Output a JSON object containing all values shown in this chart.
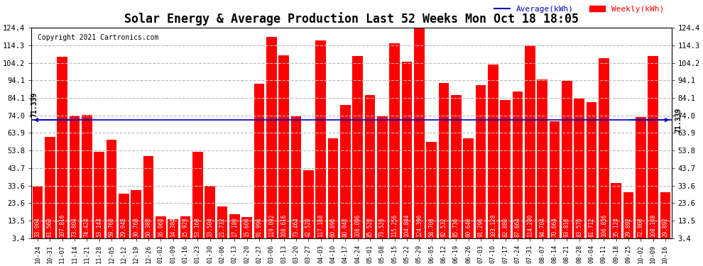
{
  "title": "Solar Energy & Average Production Last 52 Weeks Mon Oct 18 18:05",
  "copyright": "Copyright 2021 Cartronics.com",
  "average_label": "Average(kWh)",
  "weekly_label": "Weekly(kWh)",
  "average_value": 71.339,
  "bar_color": "#ff0000",
  "average_line_color": "#0000bb",
  "background_color": "#ffffff",
  "grid_color": "#bbbbbb",
  "categories": [
    "10-24",
    "10-31",
    "11-07",
    "11-14",
    "11-21",
    "11-28",
    "12-05",
    "12-12",
    "12-19",
    "12-26",
    "01-02",
    "01-09",
    "01-16",
    "01-23",
    "01-30",
    "02-06",
    "02-13",
    "02-20",
    "02-27",
    "03-06",
    "03-13",
    "03-20",
    "03-27",
    "04-03",
    "04-10",
    "04-17",
    "04-24",
    "05-01",
    "05-08",
    "05-15",
    "05-22",
    "05-29",
    "06-05",
    "06-12",
    "06-19",
    "06-26",
    "07-03",
    "07-10",
    "07-17",
    "07-24",
    "07-31",
    "08-07",
    "08-14",
    "08-21",
    "08-28",
    "09-04",
    "09-11",
    "09-18",
    "09-25",
    "10-02",
    "10-09",
    "10-16"
  ],
  "values": [
    33.004,
    61.56,
    107.816,
    73.804,
    74.424,
    53.144,
    59.768,
    29.048,
    30.768,
    50.38,
    16.068,
    14.384,
    15.928,
    53.168,
    33.504,
    21.732,
    17.18,
    15.6,
    91.996,
    119.092,
    108.616,
    73.464,
    42.52,
    117.168,
    60.896,
    80.04,
    108.096,
    85.52,
    73.52,
    115.256,
    104.844,
    124.396,
    58.708,
    92.532,
    85.736,
    60.64,
    91.296,
    103.128,
    82.88,
    87.664,
    114.28,
    94.704,
    70.664,
    93.816,
    83.576,
    81.712,
    106.836,
    35.124,
    29.892,
    72.908,
    108.108,
    29.892
  ],
  "ylim": [
    3.4,
    124.4
  ],
  "yticks": [
    3.4,
    13.5,
    23.6,
    33.6,
    43.7,
    53.8,
    63.9,
    74.0,
    84.1,
    94.1,
    104.2,
    114.3,
    124.4
  ],
  "ytick_labels": [
    "3.4",
    "13.5",
    "23.6",
    "33.6",
    "43.7",
    "53.8",
    "63.9",
    "74.0",
    "84.1",
    "94.1",
    "104.2",
    "114.3",
    "124.4"
  ],
  "avg_annotation": "71.339",
  "label_fontsize": 5.5,
  "tick_fontsize": 7.5,
  "title_fontsize": 12,
  "copyright_fontsize": 7,
  "legend_fontsize": 8
}
